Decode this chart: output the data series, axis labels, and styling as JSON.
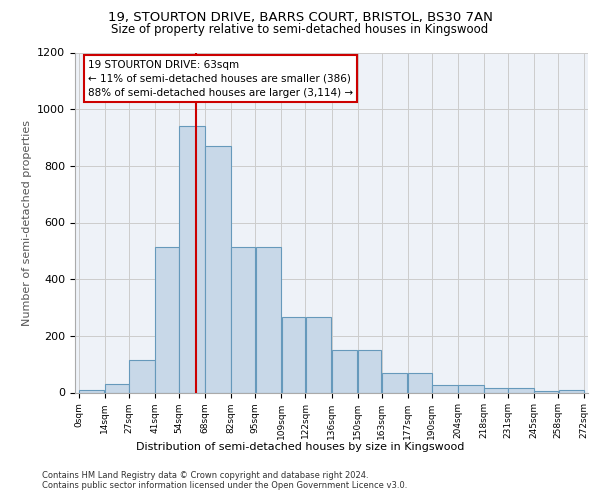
{
  "title_line1": "19, STOURTON DRIVE, BARRS COURT, BRISTOL, BS30 7AN",
  "title_line2": "Size of property relative to semi-detached houses in Kingswood",
  "xlabel": "Distribution of semi-detached houses by size in Kingswood",
  "ylabel": "Number of semi-detached properties",
  "footer_line1": "Contains HM Land Registry data © Crown copyright and database right 2024.",
  "footer_line2": "Contains public sector information licensed under the Open Government Licence v3.0.",
  "annotation_title": "19 STOURTON DRIVE: 63sqm",
  "annotation_line2": "← 11% of semi-detached houses are smaller (386)",
  "annotation_line3": "88% of semi-detached houses are larger (3,114) →",
  "property_size": 63,
  "bar_left_edges": [
    0,
    14,
    27,
    41,
    54,
    68,
    82,
    95,
    109,
    122,
    136,
    150,
    163,
    177,
    190,
    204,
    218,
    231,
    245,
    258
  ],
  "bar_widths": [
    14,
    13,
    14,
    13,
    14,
    14,
    13,
    14,
    13,
    14,
    14,
    13,
    14,
    13,
    14,
    14,
    13,
    14,
    13,
    14
  ],
  "bar_heights": [
    10,
    30,
    115,
    515,
    940,
    870,
    515,
    515,
    265,
    265,
    150,
    150,
    70,
    70,
    25,
    25,
    15,
    15,
    5,
    10
  ],
  "tick_labels": [
    "0sqm",
    "14sqm",
    "27sqm",
    "41sqm",
    "54sqm",
    "68sqm",
    "82sqm",
    "95sqm",
    "109sqm",
    "122sqm",
    "136sqm",
    "150sqm",
    "163sqm",
    "177sqm",
    "190sqm",
    "204sqm",
    "218sqm",
    "231sqm",
    "245sqm",
    "258sqm",
    "272sqm"
  ],
  "tick_positions": [
    0,
    14,
    27,
    41,
    54,
    68,
    82,
    95,
    109,
    122,
    136,
    150,
    163,
    177,
    190,
    204,
    218,
    231,
    245,
    258,
    272
  ],
  "xlim": [
    -2,
    274
  ],
  "ylim": [
    0,
    1200
  ],
  "yticks": [
    0,
    200,
    400,
    600,
    800,
    1000,
    1200
  ],
  "bar_color": "#c8d8e8",
  "bar_edge_color": "#6699bb",
  "bg_color": "#eef2f8",
  "grid_color": "#cccccc",
  "vline_color": "#cc0000",
  "vline_x": 63,
  "box_edge_color": "#cc0000",
  "title_fontsize": 9.5,
  "subtitle_fontsize": 8.5,
  "ylabel_fontsize": 8,
  "xlabel_fontsize": 8,
  "ytick_fontsize": 8,
  "xtick_fontsize": 6.5,
  "annotation_fontsize": 7.5,
  "footer_fontsize": 6
}
